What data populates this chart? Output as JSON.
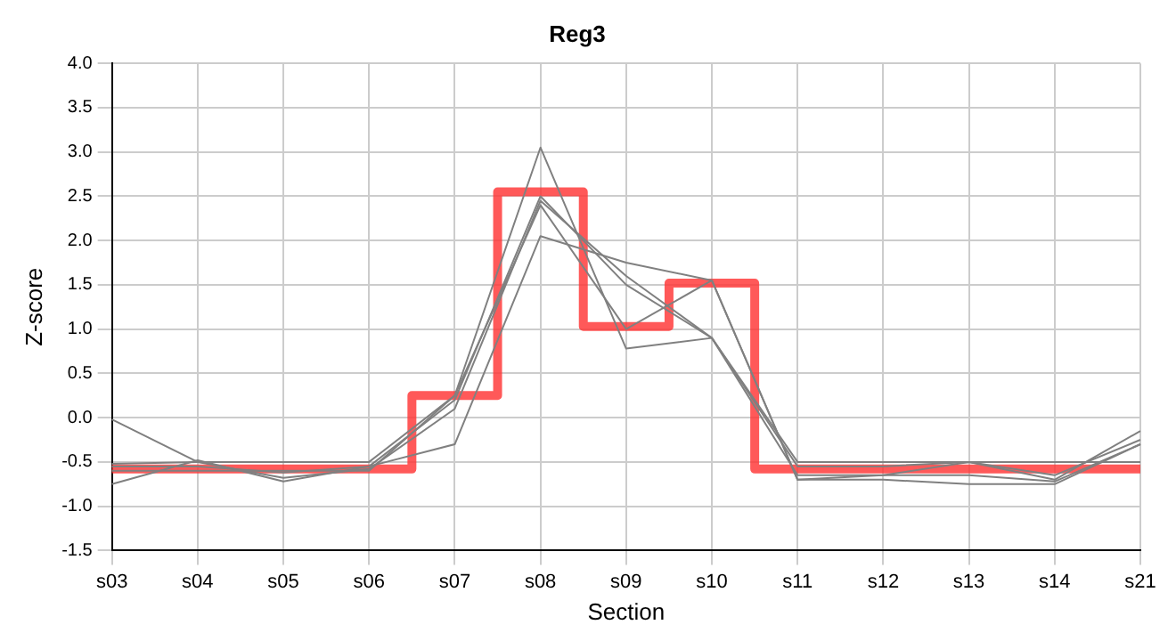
{
  "chart_data": {
    "type": "line",
    "title": "Reg3",
    "xlabel": "Section",
    "ylabel": "Z-score",
    "categories": [
      "s03",
      "s04",
      "s05",
      "s06",
      "s07",
      "s08",
      "s09",
      "s10",
      "s11",
      "s12",
      "s13",
      "s14",
      "s21"
    ],
    "ylim": [
      -1.5,
      4.0
    ],
    "yticks": [
      {
        "value": -1.5,
        "label": "-1.5"
      },
      {
        "value": -1,
        "label": "-1.0"
      },
      {
        "value": -0.5,
        "label": "-0.5"
      },
      {
        "value": 0,
        "label": "0.0"
      },
      {
        "value": 0.5,
        "label": "0.5"
      },
      {
        "value": 1,
        "label": "1.0"
      },
      {
        "value": 1.5,
        "label": "1.5"
      },
      {
        "value": 2,
        "label": "2.0"
      },
      {
        "value": 2.5,
        "label": "2.5"
      },
      {
        "value": 3,
        "label": "3.0"
      },
      {
        "value": 3.5,
        "label": "3.5"
      },
      {
        "value": 4,
        "label": "4.0"
      }
    ],
    "grid": true,
    "legend": false,
    "marker": "none",
    "line_style": "solid",
    "series": [
      {
        "color": "#808080",
        "values": [
          -0.02,
          -0.5,
          -0.68,
          -0.58,
          0.1,
          2.45,
          1.6,
          0.9,
          -0.55,
          -0.55,
          -0.5,
          -0.7,
          -0.15
        ]
      },
      {
        "color": "#808080",
        "values": [
          -0.75,
          -0.48,
          -0.72,
          -0.55,
          -0.3,
          2.05,
          1.75,
          1.55,
          -0.7,
          -0.7,
          -0.75,
          -0.75,
          -0.3
        ]
      },
      {
        "color": "#808080",
        "values": [
          -0.52,
          -0.5,
          -0.5,
          -0.5,
          0.25,
          3.05,
          0.78,
          0.9,
          -0.5,
          -0.5,
          -0.5,
          -0.5,
          -0.5
        ]
      },
      {
        "color": "#808080",
        "values": [
          -0.55,
          -0.55,
          -0.62,
          -0.55,
          0.2,
          2.5,
          1.5,
          0.9,
          -0.65,
          -0.65,
          -0.65,
          -0.72,
          -0.3
        ]
      },
      {
        "color": "#808080",
        "values": [
          -0.6,
          -0.6,
          -0.6,
          -0.6,
          0.25,
          2.4,
          1.0,
          1.55,
          -0.7,
          -0.65,
          -0.5,
          -0.65,
          -0.25
        ]
      },
      {
        "type": "step",
        "color": "#ff3333",
        "values": [
          -0.58,
          -0.58,
          -0.58,
          -0.58,
          0.25,
          2.55,
          1.03,
          1.52,
          -0.58,
          -0.58,
          -0.58,
          -0.58,
          -0.58
        ]
      }
    ]
  }
}
